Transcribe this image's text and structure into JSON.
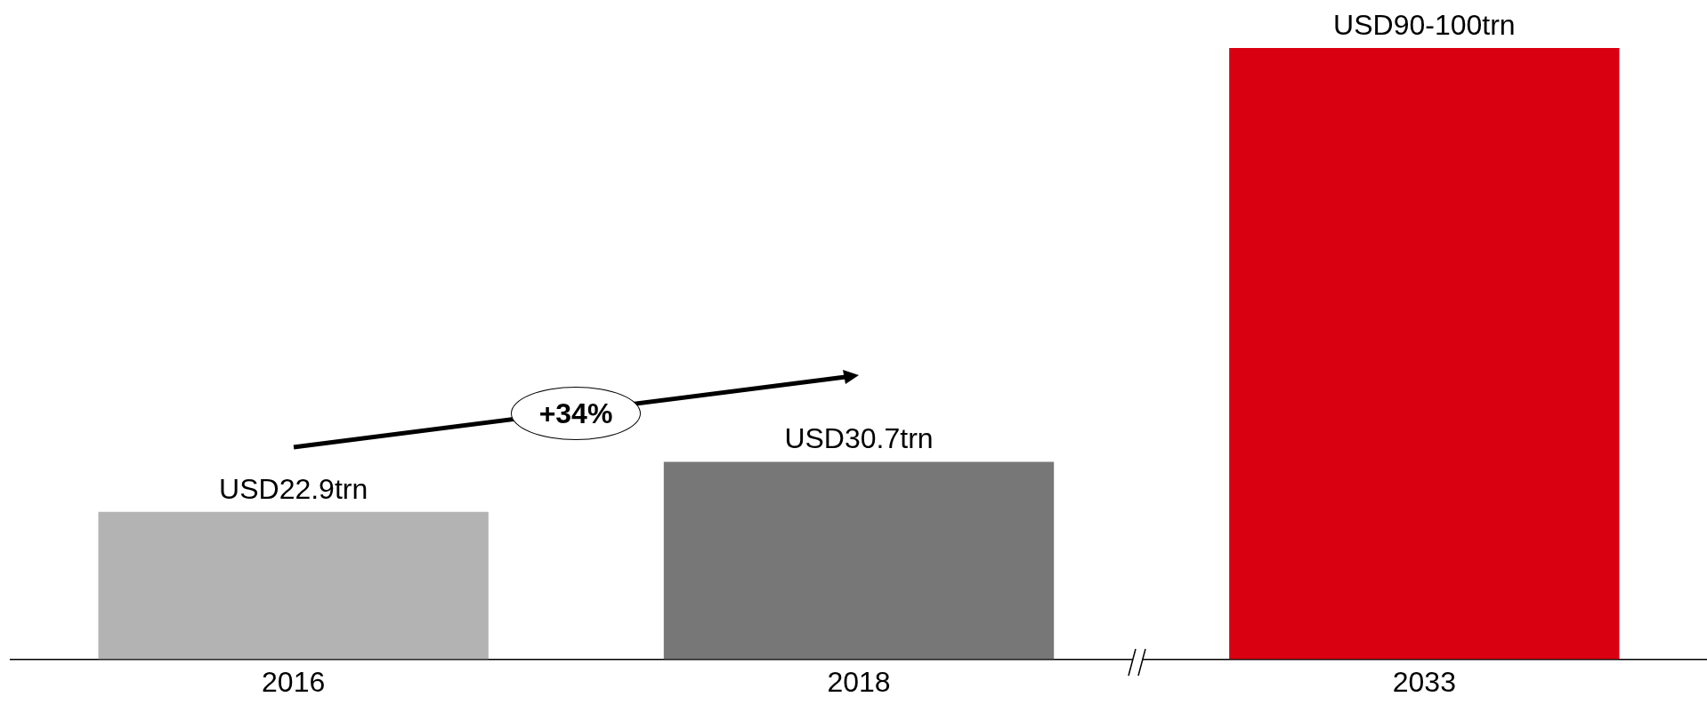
{
  "chart_data": {
    "type": "bar",
    "categories": [
      "2016",
      "2018",
      "2033"
    ],
    "values": [
      22.9,
      30.7,
      95
    ],
    "colors": [
      "#b3b3b3",
      "#777777",
      "#d90012"
    ],
    "value_labels": [
      "USD22.9trn",
      "USD30.7trn",
      "USD90-100trn"
    ],
    "annotations": [
      "+34%"
    ],
    "grid": false,
    "legend": false,
    "tick_labels": "x"
  }
}
